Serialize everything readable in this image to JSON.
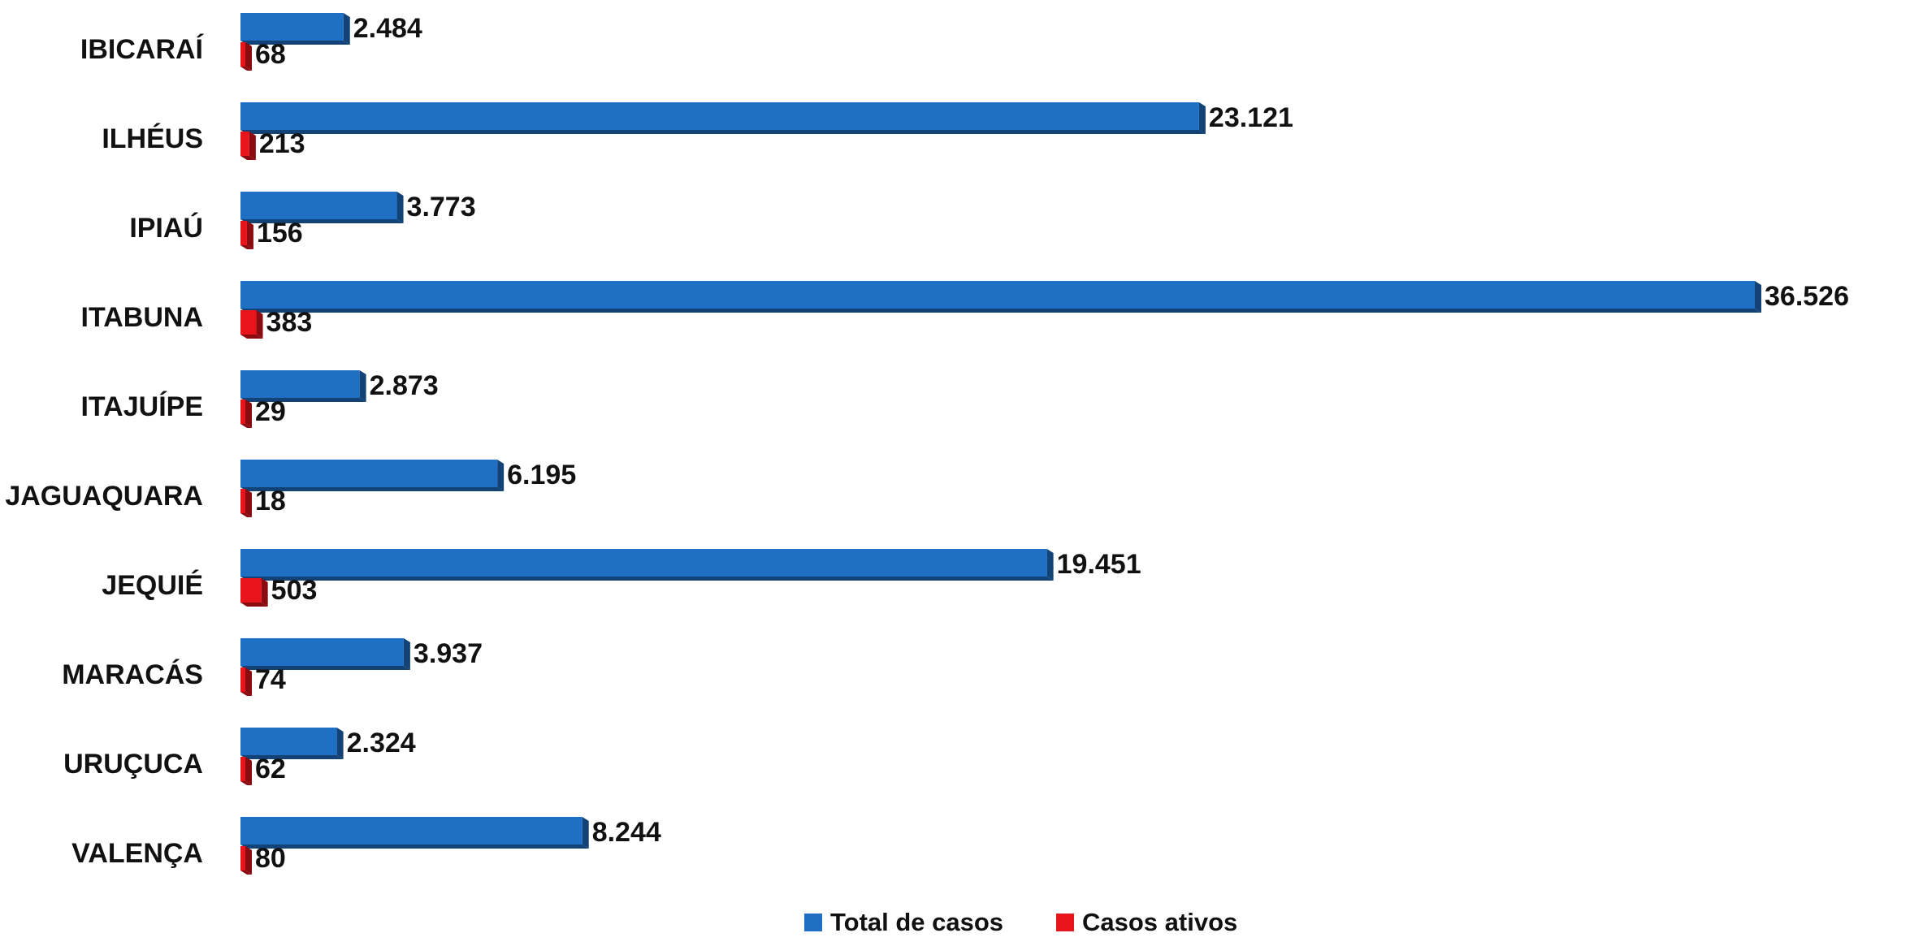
{
  "chart_data": {
    "type": "bar",
    "orientation": "horizontal",
    "categories": [
      "IBICARAÍ",
      "ILHÉUS",
      "IPIAÚ",
      "ITABUNA",
      "ITAJUÍPE",
      "JAGUAQUARA",
      "JEQUIÉ",
      "MARACÁS",
      "URUÇUCA",
      "VALENÇA"
    ],
    "series": [
      {
        "name": "Total de casos",
        "color": "#1F6FC5",
        "values": [
          2484,
          23121,
          3773,
          36526,
          2873,
          6195,
          19451,
          3937,
          2324,
          8244
        ],
        "labels": [
          "2.484",
          "23.121",
          "3.773",
          "36.526",
          "2.873",
          "6.195",
          "19.451",
          "3.937",
          "2.324",
          "8.244"
        ]
      },
      {
        "name": "Casos ativos",
        "color": "#E8141B",
        "values": [
          68,
          213,
          156,
          383,
          29,
          18,
          503,
          74,
          62,
          80
        ],
        "labels": [
          "68",
          "213",
          "156",
          "383",
          "29",
          "18",
          "503",
          "74",
          "62",
          "80"
        ]
      }
    ],
    "xlim": [
      0,
      36526
    ],
    "grid": false,
    "legend_position": "bottom"
  }
}
